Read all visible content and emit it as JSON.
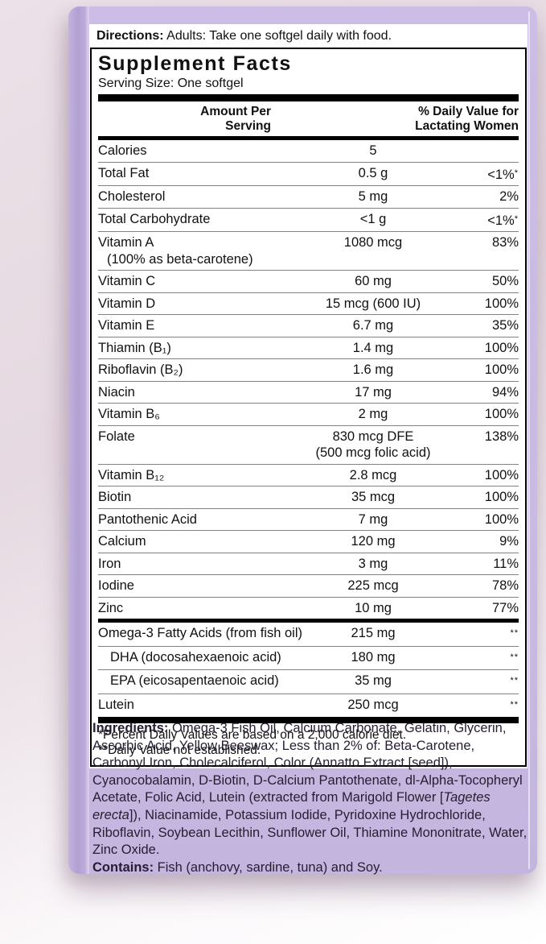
{
  "colors": {
    "box_lavender": "#c8bae2",
    "box_edge": "#b2a0d3",
    "panel_background": "#ffffff",
    "panel_border": "#000000",
    "text": "#111111",
    "ingredients_text": "#261d31",
    "page_background_top": "#ece1e8",
    "page_background_bottom": "#ffffff"
  },
  "directions": {
    "label": "Directions:",
    "text": " Adults: Take one softgel daily with food."
  },
  "panel": {
    "title": "Supplement Facts",
    "serving_size": "Serving Size: One softgel",
    "amount_header": "Amount Per\nServing",
    "dv_header": "% Daily Value for\nLactating Women",
    "rows": [
      {
        "name": "Calories",
        "amount": "5",
        "dv": ""
      },
      {
        "name": "Total Fat",
        "amount": "0.5 g",
        "dv": "<1%*"
      },
      {
        "name": "Cholesterol",
        "amount": "5 mg",
        "dv": "2%"
      },
      {
        "name": "Total Carbohydrate",
        "amount": "<1 g",
        "dv": "<1%*"
      },
      {
        "name": "Vitamin A",
        "name2": "(100% as beta-carotene)",
        "amount": "1080 mcg",
        "dv": "83%"
      },
      {
        "name": "Vitamin C",
        "amount": "60 mg",
        "dv": "50%"
      },
      {
        "name": "Vitamin D",
        "amount": "15 mcg (600 IU)",
        "dv": "100%"
      },
      {
        "name": "Vitamin E",
        "amount": "6.7 mg",
        "dv": "35%"
      },
      {
        "name": "Thiamin (B₁)",
        "amount": "1.4 mg",
        "dv": "100%"
      },
      {
        "name": "Riboflavin (B₂)",
        "amount": "1.6 mg",
        "dv": "100%"
      },
      {
        "name": "Niacin",
        "amount": "17 mg",
        "dv": "94%"
      },
      {
        "name": "Vitamin B₆",
        "amount": "2 mg",
        "dv": "100%"
      },
      {
        "name": "Folate",
        "amount": "830 mcg DFE",
        "amount2": "(500 mcg folic acid)",
        "dv": "138%"
      },
      {
        "name": "Vitamin B₁₂",
        "amount": "2.8 mcg",
        "dv": "100%"
      },
      {
        "name": "Biotin",
        "amount": "35 mcg",
        "dv": "100%"
      },
      {
        "name": "Pantothenic Acid",
        "amount": "7 mg",
        "dv": "100%"
      },
      {
        "name": "Calcium",
        "amount": "120 mg",
        "dv": "9%"
      },
      {
        "name": "Iron",
        "amount": "3 mg",
        "dv": "11%"
      },
      {
        "name": "Iodine",
        "amount": "225 mcg",
        "dv": "78%"
      },
      {
        "name": "Zinc",
        "amount": "10 mg",
        "dv": "77%"
      },
      {
        "name": "Omega-3 Fatty Acids (from fish oil)",
        "amount": "215 mg",
        "dv": "**",
        "section_break": true
      },
      {
        "name": "DHA (docosahexaenoic acid)",
        "amount": "180 mg",
        "dv": "**",
        "indent": true
      },
      {
        "name": "EPA (eicosapentaenoic acid)",
        "amount": "35 mg",
        "dv": "**",
        "indent": true
      },
      {
        "name": "Lutein",
        "amount": "250 mcg",
        "dv": "**"
      }
    ],
    "footnote_1": "*Percent Daily Values are based on a 2,000 calorie diet.",
    "footnote_2": "**Daily Value not established."
  },
  "ingredients": {
    "label": "Ingredients:",
    "text_before_italic": " Omega-3 Fish Oil, Calcium Carbonate, Gelatin, Glycerin, Ascorbic Acid, Yellow Beeswax; Less than 2% of: Beta-Carotene, Carbonyl Iron, Cholecalciferol, Color (Annatto Extract [seed]), Cyanocobalamin, D-Biotin, D-Calcium Pantothenate, dl-Alpha-Tocopheryl Acetate, Folic Acid, Lutein (extracted from Marigold Flower [",
    "italic": "Tagetes erecta",
    "text_after_italic": "]), Niacinamide, Potassium Iodide, Pyridoxine Hydrochloride, Riboflavin, Soybean Lecithin, Sunflower Oil, Thiamine Mononitrate, Water, Zinc Oxide."
  },
  "contains": {
    "label": "Contains:",
    "text": " Fish (anchovy, sardine, tuna) and Soy."
  }
}
